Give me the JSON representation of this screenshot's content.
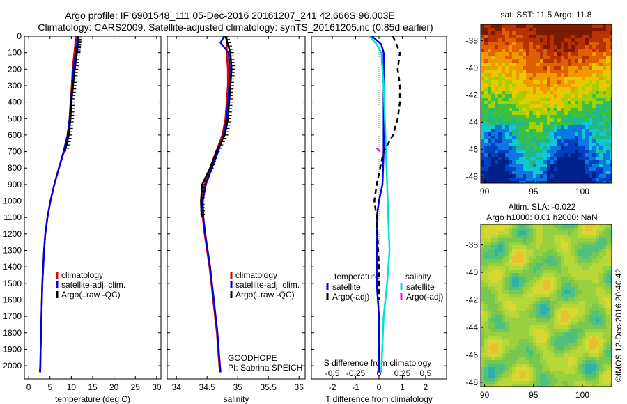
{
  "header": {
    "line1": "Argo profile: IF 6901548_111 05-Dec-2016 20161207_241 42.666S 96.003E",
    "line2": "Climatology: CARS2009. Satellite-adjusted climatology: synTS_20161205.nc (0.85d earlier)"
  },
  "chart_data": [
    {
      "type": "line",
      "panel": "temperature",
      "xlabel": "temperature (deg C)",
      "xlim": [
        -1,
        31
      ],
      "xticks": [
        0,
        5,
        10,
        15,
        20,
        25,
        30
      ],
      "ylim": [
        0,
        2080
      ],
      "yticks": [
        0,
        100,
        200,
        300,
        400,
        500,
        600,
        700,
        800,
        900,
        1000,
        1100,
        1200,
        1300,
        1400,
        1500,
        1600,
        1700,
        1800,
        1900,
        2000
      ],
      "y_reversed": true,
      "series": [
        {
          "name": "climatology",
          "color": "#dd0000",
          "points": [
            [
              11.0,
              0
            ],
            [
              10.9,
              50
            ],
            [
              10.7,
              100
            ],
            [
              10.3,
              200
            ],
            [
              10.1,
              300
            ],
            [
              9.8,
              400
            ],
            [
              9.6,
              500
            ],
            [
              9.2,
              600
            ],
            [
              8.3,
              700
            ],
            [
              7.1,
              800
            ],
            [
              6.0,
              900
            ],
            [
              5.1,
              1000
            ],
            [
              4.4,
              1100
            ],
            [
              3.9,
              1200
            ],
            [
              3.6,
              1300
            ],
            [
              3.4,
              1400
            ],
            [
              3.2,
              1500
            ],
            [
              3.1,
              1600
            ],
            [
              3.0,
              1700
            ],
            [
              2.9,
              1800
            ],
            [
              2.8,
              1900
            ],
            [
              2.7,
              2000
            ],
            [
              2.6,
              2040
            ]
          ]
        },
        {
          "name": "satellite-adj. clim.",
          "color": "#0000dd",
          "points": [
            [
              11.4,
              0
            ],
            [
              11.3,
              50
            ],
            [
              11.0,
              100
            ],
            [
              10.5,
              200
            ],
            [
              10.2,
              300
            ],
            [
              9.9,
              400
            ],
            [
              9.6,
              500
            ],
            [
              9.1,
              600
            ],
            [
              8.2,
              700
            ],
            [
              7.1,
              800
            ],
            [
              6.0,
              900
            ],
            [
              5.1,
              1000
            ],
            [
              4.4,
              1100
            ],
            [
              3.9,
              1200
            ],
            [
              3.6,
              1300
            ],
            [
              3.4,
              1400
            ],
            [
              3.2,
              1500
            ],
            [
              3.1,
              1600
            ],
            [
              3.0,
              1700
            ],
            [
              2.9,
              1800
            ],
            [
              2.8,
              1900
            ],
            [
              2.75,
              2000
            ],
            [
              2.7,
              2040
            ]
          ]
        },
        {
          "name": "Argo(..raw -QC)",
          "color": "#000000",
          "points": [
            [
              11.6,
              0
            ],
            [
              11.5,
              50
            ],
            [
              11.3,
              100
            ],
            [
              10.8,
              200
            ],
            [
              10.4,
              300
            ],
            [
              10.0,
              400
            ],
            [
              9.8,
              500
            ],
            [
              9.4,
              600
            ],
            [
              8.5,
              700
            ]
          ]
        }
      ],
      "legend": [
        "climatology",
        "satellite-adj. clim.",
        "Argo(..raw -QC)"
      ]
    },
    {
      "type": "line",
      "panel": "salinity",
      "xlabel": "salinity",
      "xlim": [
        33.85,
        36.1
      ],
      "xticks": [
        34,
        34.5,
        35,
        35.5,
        36
      ],
      "xticklabels": [
        "34",
        "34.5",
        "35",
        "35.5",
        "36"
      ],
      "ylim": [
        0,
        2080
      ],
      "y_reversed": true,
      "series": [
        {
          "name": "climatology",
          "color": "#dd0000",
          "points": [
            [
              34.82,
              0
            ],
            [
              34.82,
              100
            ],
            [
              34.84,
              200
            ],
            [
              34.84,
              300
            ],
            [
              34.82,
              400
            ],
            [
              34.8,
              500
            ],
            [
              34.75,
              600
            ],
            [
              34.65,
              700
            ],
            [
              34.55,
              800
            ],
            [
              34.46,
              900
            ],
            [
              34.42,
              1000
            ],
            [
              34.43,
              1100
            ],
            [
              34.46,
              1200
            ],
            [
              34.5,
              1300
            ],
            [
              34.54,
              1400
            ],
            [
              34.57,
              1500
            ],
            [
              34.6,
              1600
            ],
            [
              34.63,
              1700
            ],
            [
              34.66,
              1800
            ],
            [
              34.68,
              1900
            ],
            [
              34.7,
              2000
            ],
            [
              34.71,
              2040
            ]
          ]
        },
        {
          "name": "satellite-adj. clim.",
          "color": "#0000dd",
          "points": [
            [
              34.78,
              0
            ],
            [
              34.72,
              40
            ],
            [
              34.85,
              100
            ],
            [
              34.87,
              200
            ],
            [
              34.86,
              300
            ],
            [
              34.84,
              400
            ],
            [
              34.82,
              500
            ],
            [
              34.77,
              600
            ],
            [
              34.68,
              700
            ],
            [
              34.58,
              800
            ],
            [
              34.48,
              900
            ],
            [
              34.43,
              1000
            ],
            [
              34.44,
              1100
            ],
            [
              34.47,
              1200
            ],
            [
              34.51,
              1300
            ],
            [
              34.55,
              1400
            ],
            [
              34.58,
              1500
            ],
            [
              34.61,
              1600
            ],
            [
              34.64,
              1700
            ],
            [
              34.67,
              1800
            ],
            [
              34.69,
              1900
            ],
            [
              34.71,
              2000
            ],
            [
              34.72,
              2040
            ]
          ]
        },
        {
          "name": "Argo(..raw -QC)",
          "color": "#000000",
          "points": [
            [
              34.8,
              0
            ],
            [
              34.88,
              100
            ],
            [
              34.9,
              200
            ],
            [
              34.88,
              300
            ],
            [
              34.86,
              400
            ],
            [
              34.84,
              500
            ],
            [
              34.79,
              600
            ],
            [
              34.65,
              700
            ],
            [
              34.55,
              800
            ],
            [
              34.42,
              900
            ],
            [
              34.4,
              1000
            ],
            [
              34.41,
              1100
            ]
          ]
        }
      ],
      "legend": [
        "climatology",
        "satellite-adj. clim.",
        "Argo(..raw -QC)"
      ],
      "annotation": [
        "GOODHOPE",
        "PI: Sabrina SPEICH"
      ]
    },
    {
      "type": "line",
      "panel": "difference",
      "xlabel": "T difference from climatology",
      "x2label": "S difference from climatology",
      "xlim": [
        -2.9,
        2.9
      ],
      "xticks": [
        -2,
        -1,
        0,
        1,
        2
      ],
      "xticklabels": [
        "-2",
        "-1",
        "0",
        "1",
        "2"
      ],
      "x2ticks": [
        -0.5,
        -0.25,
        0,
        0.25,
        0.5
      ],
      "x2ticklabels": [
        "-0.5",
        "-0.25",
        "0",
        "0.25",
        "0.5"
      ],
      "ylim": [
        0,
        2080
      ],
      "y_reversed": true,
      "legend_groups": [
        {
          "title": "temperature",
          "items": [
            {
              "name": "satellite",
              "color": "#0000dd"
            },
            {
              "name": "Argo(-adj)",
              "color": "#000000"
            }
          ]
        },
        {
          "title": "salinity",
          "items": [
            {
              "name": "satellite",
              "color": "#00dddd"
            },
            {
              "name": "Argo(-adj)",
              "color": "#ff00ff"
            }
          ]
        }
      ],
      "series": [
        {
          "name": "satellite",
          "group": "temperature",
          "color": "#0000dd",
          "points": [
            [
              -0.3,
              0
            ],
            [
              0.1,
              50
            ],
            [
              0.2,
              100
            ],
            [
              0.2,
              300
            ],
            [
              0.2,
              500
            ],
            [
              0.2,
              700
            ],
            [
              0.15,
              900
            ],
            [
              0.0,
              1000
            ],
            [
              -0.1,
              1100
            ],
            [
              -0.1,
              1300
            ],
            [
              -0.1,
              1500
            ],
            [
              0.0,
              1700
            ],
            [
              0.0,
              2040
            ]
          ]
        },
        {
          "name": "satellite",
          "group": "salinity",
          "color": "#00dddd",
          "points": [
            [
              -0.4,
              0
            ],
            [
              -0.1,
              50
            ],
            [
              0.1,
              100
            ],
            [
              0.2,
              300
            ],
            [
              0.25,
              500
            ],
            [
              0.3,
              700
            ],
            [
              0.35,
              900
            ],
            [
              0.4,
              1100
            ],
            [
              0.45,
              1300
            ],
            [
              0.35,
              1500
            ],
            [
              0.2,
              1700
            ],
            [
              0.1,
              2040
            ]
          ]
        },
        {
          "name": "Argo(-adj)",
          "group": "temperature",
          "color": "#000000",
          "points": [
            [
              0.6,
              0
            ],
            [
              0.9,
              100
            ],
            [
              0.8,
              200
            ],
            [
              0.9,
              300
            ],
            [
              0.9,
              400
            ],
            [
              0.8,
              500
            ],
            [
              0.6,
              600
            ],
            [
              0.2,
              700
            ],
            [
              -0.1,
              900
            ],
            [
              -0.2,
              1000
            ],
            [
              -0.1,
              1100
            ],
            [
              0.0,
              1400
            ],
            [
              0.0,
              1600
            ]
          ]
        },
        {
          "name": "Argo(-adj)",
          "group": "salinity",
          "color": "#ff00ff",
          "points": [
            [
              -0.1,
              680
            ],
            [
              0.05,
              700
            ]
          ]
        }
      ]
    },
    {
      "type": "heatmap",
      "panel": "sst-map",
      "title": "sat. SST: 11.5 Argo: 11.8",
      "xlim": [
        89.6,
        103
      ],
      "xticks": [
        90,
        95,
        100
      ],
      "ylim": [
        -48.5,
        -36.8
      ],
      "yticks": [
        -38,
        -40,
        -42,
        -44,
        -46,
        -48
      ]
    },
    {
      "type": "heatmap",
      "panel": "sla-map",
      "title": [
        "Altim. SLA: -0.022",
        "Argo h1000: 0.01 h2000: NaN"
      ],
      "xlim": [
        89.6,
        103
      ],
      "xticks": [
        90,
        95,
        100
      ],
      "ylim": [
        -48.3,
        -36.5
      ],
      "yticks": [
        -38,
        -40,
        -42,
        -44,
        -46,
        -48
      ]
    }
  ],
  "footer": {
    "stamp": "©IMOS 12-Dec-2016 20:40:42"
  }
}
